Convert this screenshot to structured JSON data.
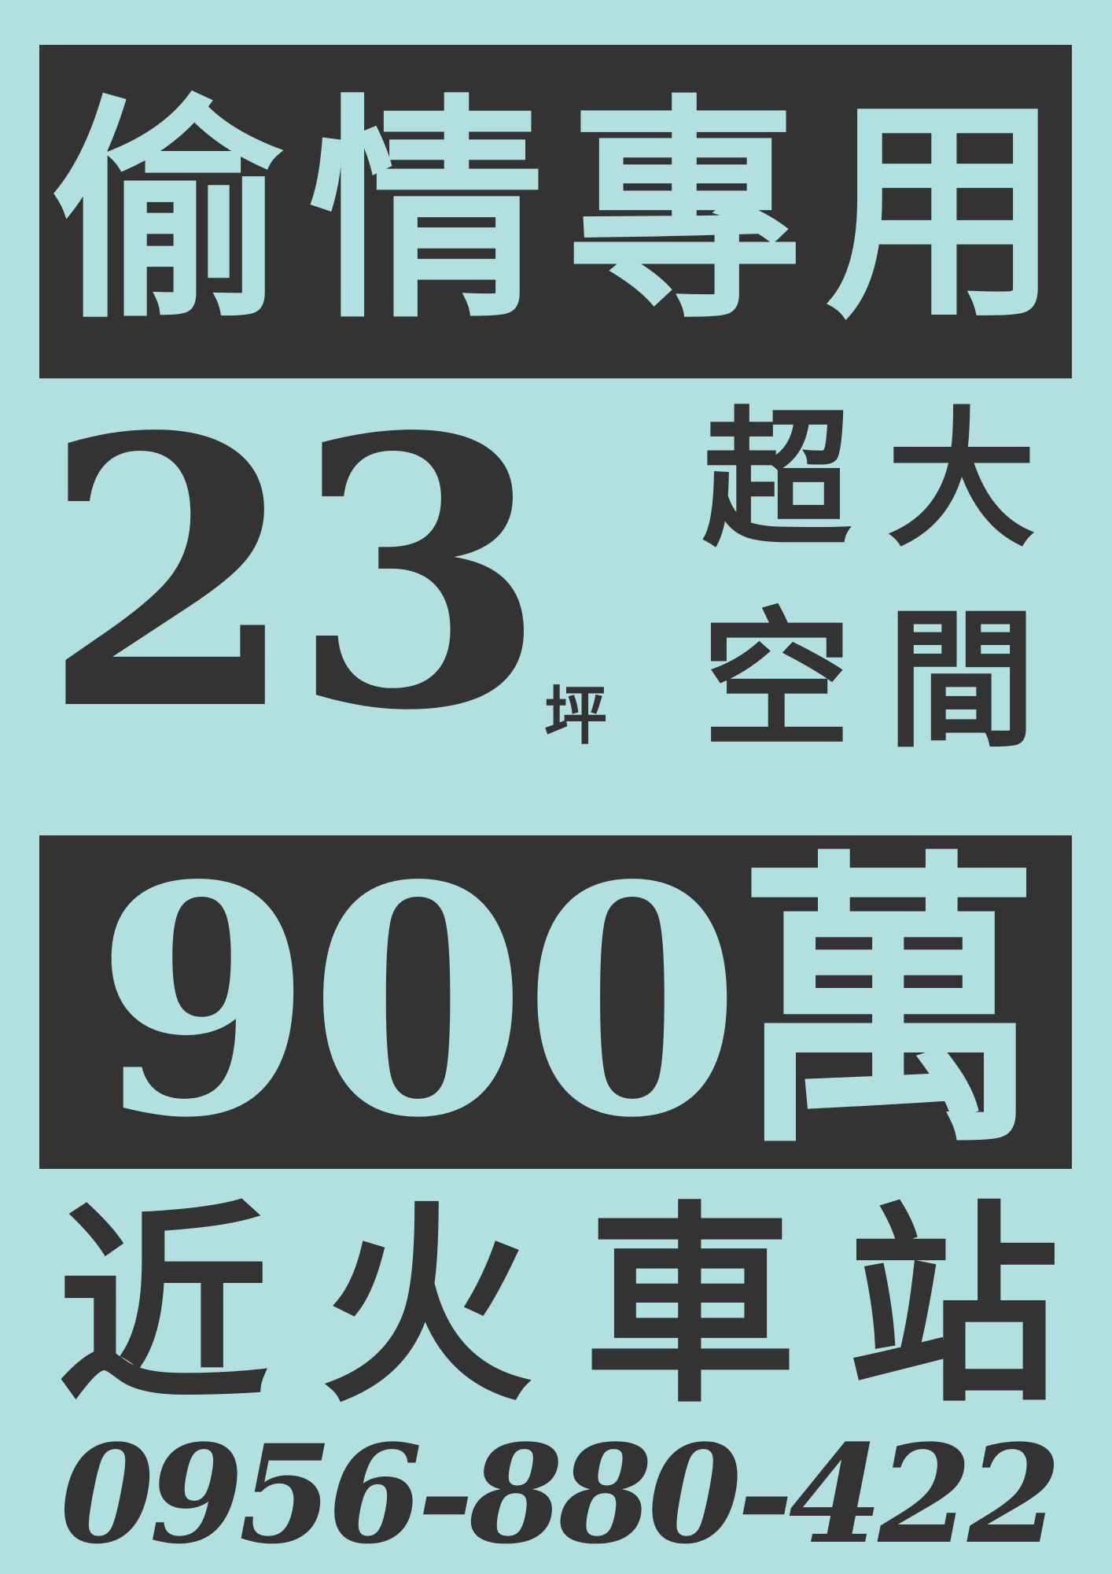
{
  "headline": [
    "偷",
    "情",
    "專",
    "用"
  ],
  "size": {
    "value": "23",
    "unit": "坪",
    "label": [
      "超",
      "大",
      "空",
      "間"
    ]
  },
  "price": {
    "value": "900",
    "unit": "萬"
  },
  "location": [
    "近",
    "火",
    "車",
    "站"
  ],
  "phone": "0956-880-422",
  "colors": {
    "background": "#b2dfdf",
    "ink": "#333333"
  }
}
